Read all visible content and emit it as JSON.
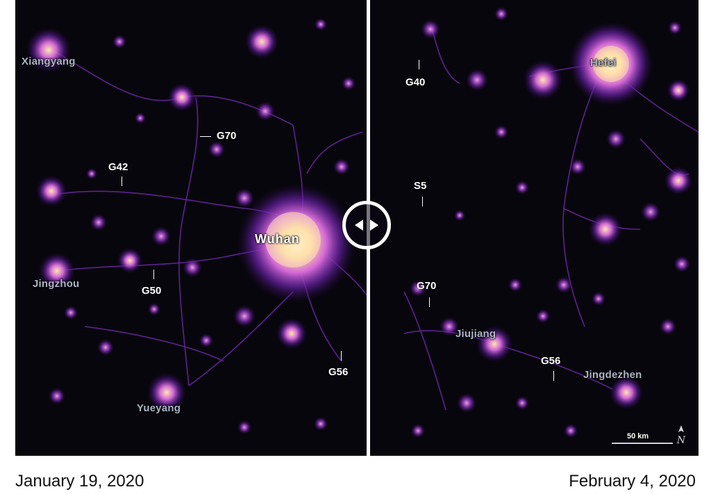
{
  "left_panel": {
    "date": "January 19, 2020",
    "cities": [
      {
        "id": "xiangyang",
        "label": "Xiangyang"
      },
      {
        "id": "wuhan",
        "label": "Wuhan"
      },
      {
        "id": "jingzhou",
        "label": "Jingzhou"
      },
      {
        "id": "yueyang",
        "label": "Yueyang"
      }
    ],
    "roads": [
      "G70",
      "G42",
      "G50",
      "G56"
    ]
  },
  "right_panel": {
    "date": "February 4, 2020",
    "cities": [
      {
        "id": "hefei",
        "label": "Hefei"
      },
      {
        "id": "jiujiang",
        "label": "Jiujiang"
      },
      {
        "id": "jingdezhen",
        "label": "Jingdezhen"
      }
    ],
    "roads": [
      "G40",
      "S5",
      "G70",
      "G56"
    ]
  },
  "scale_bar": {
    "label": "50 km"
  },
  "north_arrow": {
    "label": "N"
  },
  "colors": {
    "background": "#07050c",
    "glow_core": "#fff3c8",
    "glow_mid": "#c05bd6",
    "glow_outer": "#4a1680",
    "label_white": "#ffffff",
    "label_gray": "#aab4c2"
  },
  "icons": {
    "slider": "left-right-arrows-icon",
    "north": "north-arrow-icon"
  }
}
